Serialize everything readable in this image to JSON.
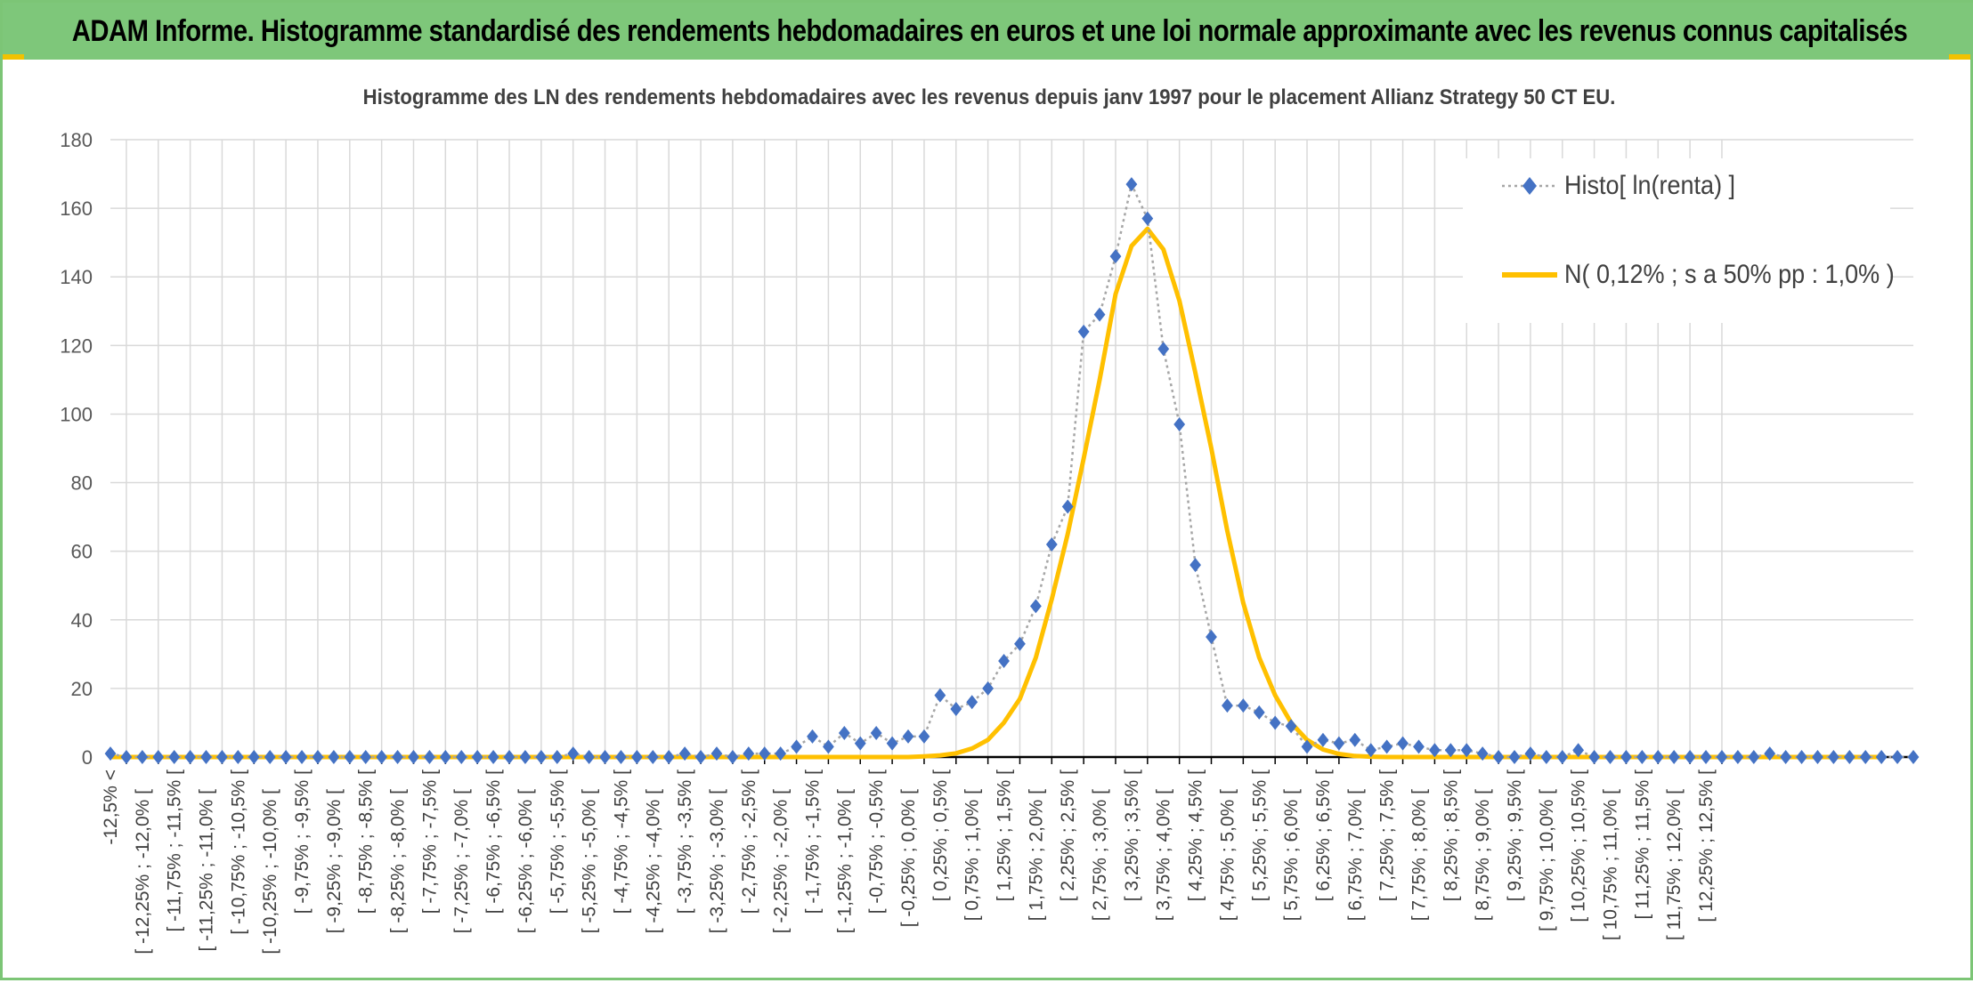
{
  "banner": {
    "title": "ADAM Informe. Histogramme standardisé des rendements hebdomadaires en euros et une loi normale approximante avec les revenus connus capitalisés"
  },
  "chart_data": {
    "type": "line",
    "title": "Histogramme des LN des rendements hebdomadaires avec les revenus depuis janv 1997 pour le placement Allianz Strategy 50 CT EU.",
    "xlabel": "",
    "ylabel": "",
    "ylim": [
      0,
      180
    ],
    "yticks": [
      0,
      20,
      40,
      60,
      80,
      100,
      120,
      140,
      160,
      180
    ],
    "grid": true,
    "legend_position": "top-right",
    "x_tick_labels": [
      "-12,5% <",
      "[ -12,25% ; -12,0% [",
      "[ -11,75% ; -11,5% [",
      "[ -11,25% ; -11,0% [",
      "[ -10,75% ; -10,5% [",
      "[ -10,25% ; -10,0% [",
      "[ -9,75% ; -9,5% [",
      "[ -9,25% ; -9,0% [",
      "[ -8,75% ; -8,5% [",
      "[ -8,25% ; -8,0% [",
      "[ -7,75% ; -7,5% [",
      "[ -7,25% ; -7,0% [",
      "[ -6,75% ; -6,5% [",
      "[ -6,25% ; -6,0% [",
      "[ -5,75% ; -5,5% [",
      "[ -5,25% ; -5,0% [",
      "[ -4,75% ; -4,5% [",
      "[ -4,25% ; -4,0% [",
      "[ -3,75% ; -3,5% [",
      "[ -3,25% ; -3,0% [",
      "[ -2,75% ; -2,5% [",
      "[ -2,25% ; -2,0% [",
      "[ -1,75% ; -1,5% [",
      "[ -1,25% ; -1,0% [",
      "[ -0,75% ; -0,5% [",
      "[ -0,25% ; 0,0% [",
      "[ 0,25% ; 0,5% [",
      "[ 0,75% ; 1,0% [",
      "[ 1,25% ; 1,5% [",
      "[ 1,75% ; 2,0% [",
      "[ 2,25% ; 2,5% [",
      "[ 2,75% ; 3,0% [",
      "[ 3,25% ; 3,5% [",
      "[ 3,75% ; 4,0% [",
      "[ 4,25% ; 4,5% [",
      "[ 4,75% ; 5,0% [",
      "[ 5,25% ; 5,5% [",
      "[ 5,75% ; 6,0% [",
      "[ 6,25% ; 6,5% [",
      "[ 6,75% ; 7,0% [",
      "[ 7,25% ; 7,5% [",
      "[ 7,75% ; 8,0% [",
      "[ 8,25% ; 8,5% [",
      "[ 8,75% ; 9,0% [",
      "[ 9,25% ; 9,5% [",
      "[ 9,75% ; 10,0% [",
      "[ 10,25% ; 10,5% [",
      "[ 10,75% ; 11,0% [",
      "[ 11,25% ; 11,5% [",
      "[ 11,75% ; 12,0% [",
      "[ 12,25% ; 12,5% ["
    ],
    "series": [
      {
        "name": "Histo[ ln(renta) ]",
        "color": "#4472c4",
        "marker": "diamond",
        "line_style": "dotted",
        "line_color": "#a6a6a6",
        "values": [
          1,
          0,
          0,
          0,
          0,
          0,
          0,
          0,
          0,
          0,
          0,
          0,
          0,
          0,
          0,
          0,
          0,
          0,
          0,
          0,
          0,
          0,
          0,
          0,
          0,
          0,
          0,
          0,
          0,
          1,
          0,
          0,
          0,
          0,
          0,
          0,
          1,
          0,
          1,
          0,
          1,
          1,
          1,
          3,
          6,
          3,
          7,
          4,
          7,
          4,
          6,
          6,
          18,
          14,
          16,
          20,
          28,
          33,
          44,
          62,
          73,
          124,
          129,
          146,
          167,
          157,
          119,
          97,
          56,
          35,
          15,
          15,
          13,
          10,
          9,
          3,
          5,
          4,
          5,
          2,
          3,
          4,
          3,
          2,
          2,
          2,
          1,
          0,
          0,
          1,
          0,
          0,
          2,
          0,
          0,
          0,
          0,
          0,
          0,
          0,
          0,
          0,
          0,
          0,
          1,
          0,
          0,
          0,
          0,
          0,
          0,
          0,
          0,
          0
        ]
      },
      {
        "name": "N( 0,12% ; s a 50% pp : 1,0% )",
        "color": "#ffc000",
        "line_style": "solid",
        "values": [
          0,
          0,
          0,
          0,
          0,
          0,
          0,
          0,
          0,
          0,
          0,
          0,
          0,
          0,
          0,
          0,
          0,
          0,
          0,
          0,
          0,
          0,
          0,
          0,
          0,
          0,
          0,
          0,
          0,
          0,
          0,
          0,
          0,
          0,
          0,
          0,
          0,
          0,
          0,
          0,
          0,
          0,
          0,
          0,
          0,
          0,
          0,
          0,
          0,
          0,
          0,
          0.2,
          0.5,
          1.1,
          2.5,
          5,
          10,
          17,
          29,
          46,
          65,
          87,
          110,
          135,
          149,
          154,
          148,
          133,
          112,
          90,
          66,
          45,
          29,
          18,
          10,
          5,
          2.2,
          0.9,
          0.3,
          0.1,
          0,
          0,
          0,
          0,
          0,
          0,
          0,
          0,
          0,
          0,
          0,
          0,
          0,
          0,
          0,
          0,
          0,
          0,
          0,
          0,
          0,
          0,
          0,
          0,
          0,
          0,
          0,
          0,
          0,
          0,
          0,
          0
        ]
      }
    ]
  }
}
